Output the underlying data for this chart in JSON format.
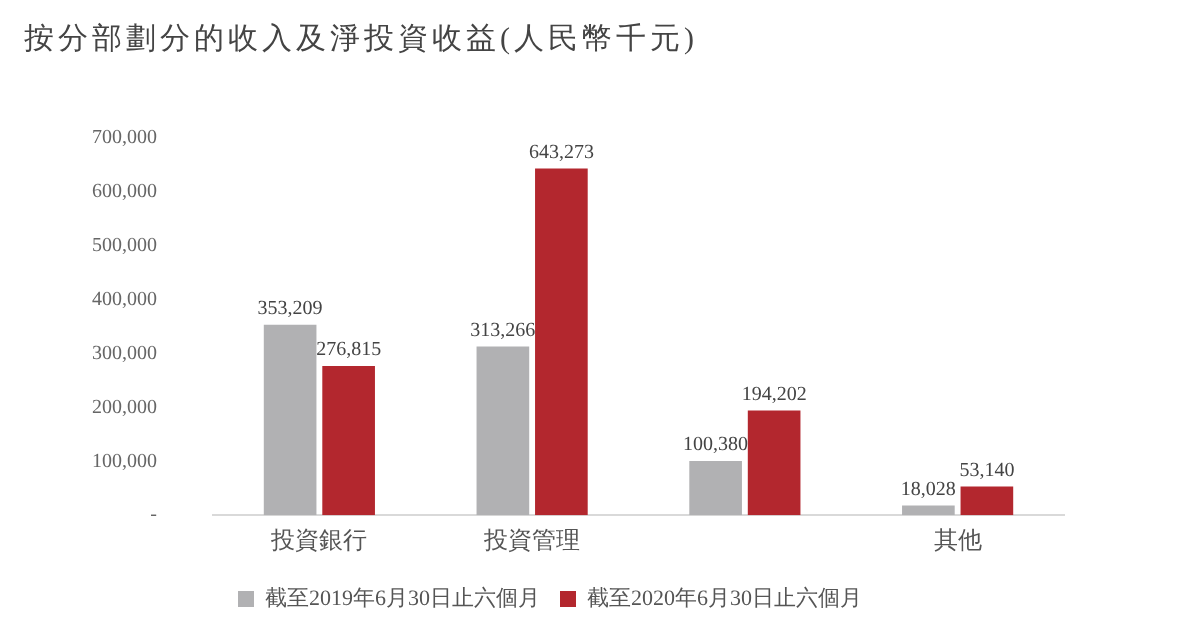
{
  "chart_data": {
    "type": "bar",
    "title": "按分部劃分的收入及淨投資收益(人民幣千元)",
    "categories": [
      "投資銀行",
      "投資管理",
      null,
      "其他"
    ],
    "series": [
      {
        "name": "截至2019年6月30日止六個月",
        "color": "#b1b1b3",
        "values": [
          353209,
          313266,
          100380,
          18028
        ],
        "value_labels": [
          "353,209",
          "313,266",
          "100,380",
          "18,028"
        ]
      },
      {
        "name": "截至2020年6月30日止六個月",
        "color": "#b3272e",
        "values": [
          276815,
          643273,
          194202,
          53140
        ],
        "value_labels": [
          "276,815",
          "643,273",
          "194,202",
          "53,140"
        ]
      }
    ],
    "ylim": [
      0,
      700000
    ],
    "yticks": [
      {
        "value": 0,
        "label": "-"
      },
      {
        "value": 100000,
        "label": "100,000"
      },
      {
        "value": 200000,
        "label": "200,000"
      },
      {
        "value": 300000,
        "label": "300,000"
      },
      {
        "value": 400000,
        "label": "400,000"
      },
      {
        "value": 500000,
        "label": "500,000"
      },
      {
        "value": 600000,
        "label": "600,000"
      },
      {
        "value": 700000,
        "label": "700,000"
      }
    ],
    "grid": false,
    "legend": "bottom"
  }
}
